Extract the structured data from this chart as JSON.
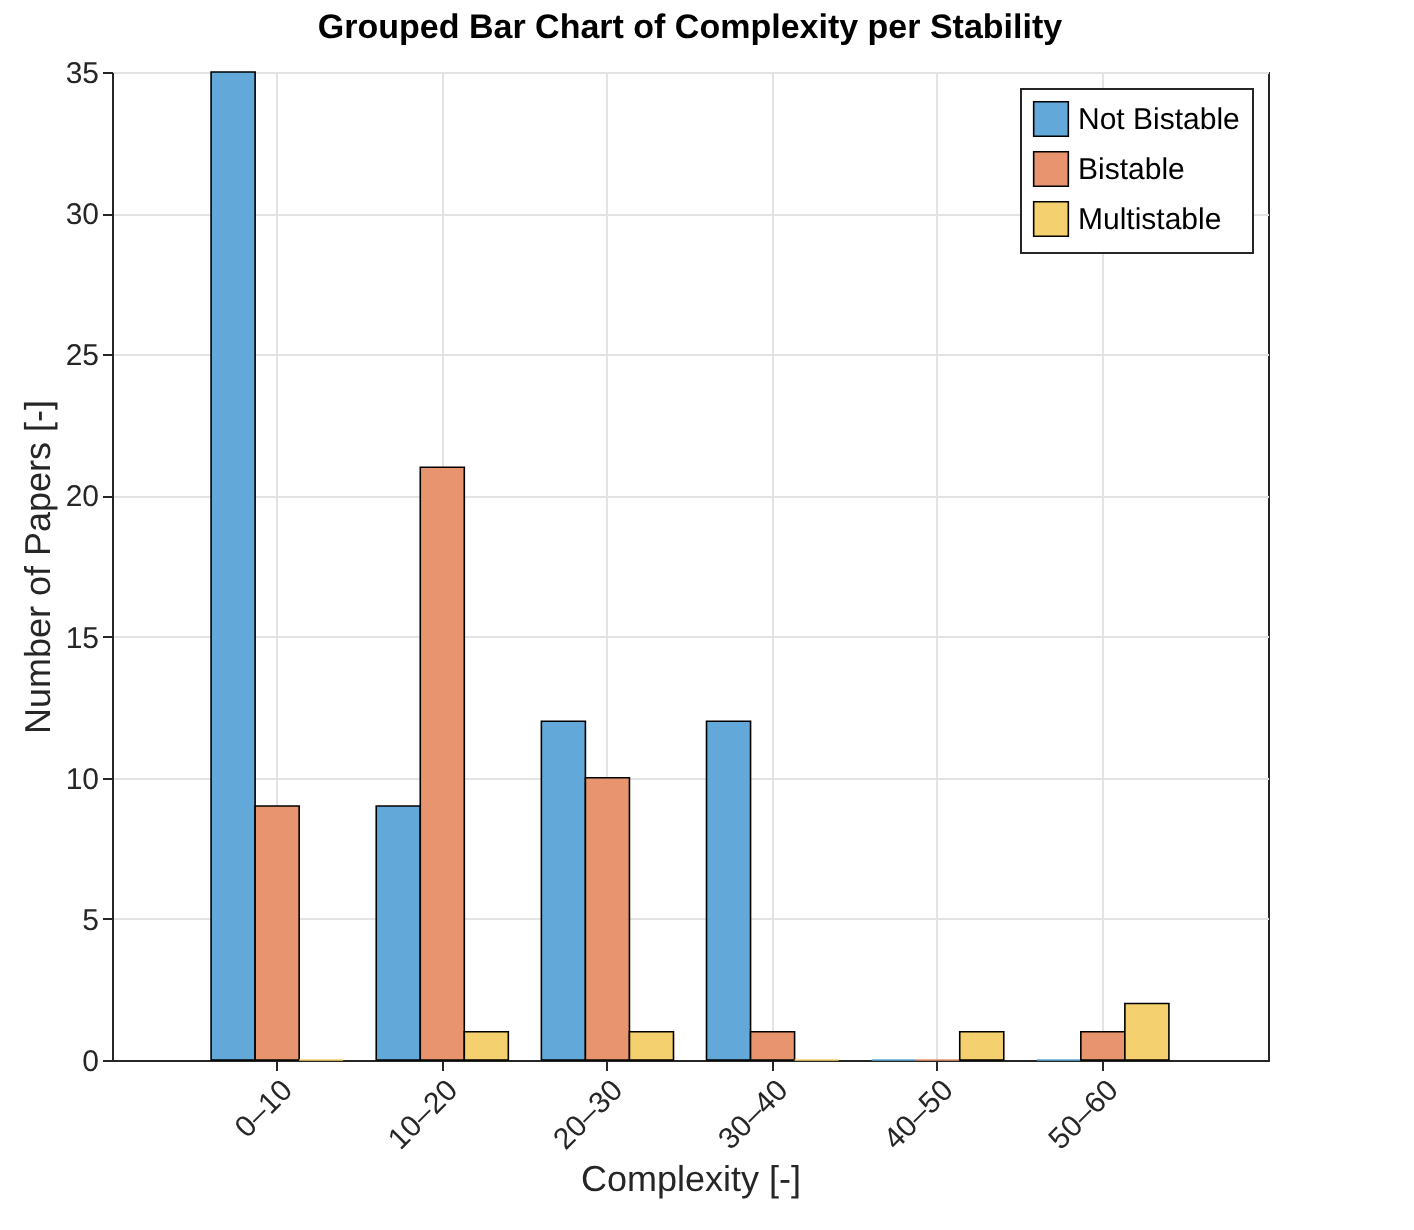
{
  "chart_data": {
    "type": "bar",
    "title": "Grouped Bar Chart of Complexity per Stability",
    "xlabel": "Complexity [-]",
    "ylabel": "Number of Papers [-]",
    "categories": [
      "0–10",
      "10–20",
      "20–30",
      "30–40",
      "40–50",
      "50–60"
    ],
    "series": [
      {
        "name": "Not Bistable",
        "color": "#62a8d9",
        "values": [
          35,
          9,
          12,
          12,
          0,
          0
        ]
      },
      {
        "name": "Bistable",
        "color": "#e8946f",
        "values": [
          9,
          21,
          10,
          1,
          0,
          1
        ]
      },
      {
        "name": "Multistable",
        "color": "#f5d06e",
        "values": [
          0,
          1,
          1,
          0,
          1,
          2
        ]
      }
    ],
    "ylim": [
      0,
      35
    ],
    "yticks": [
      0,
      5,
      10,
      15,
      20,
      25,
      30,
      35
    ],
    "grid": true,
    "legend": "top right"
  }
}
